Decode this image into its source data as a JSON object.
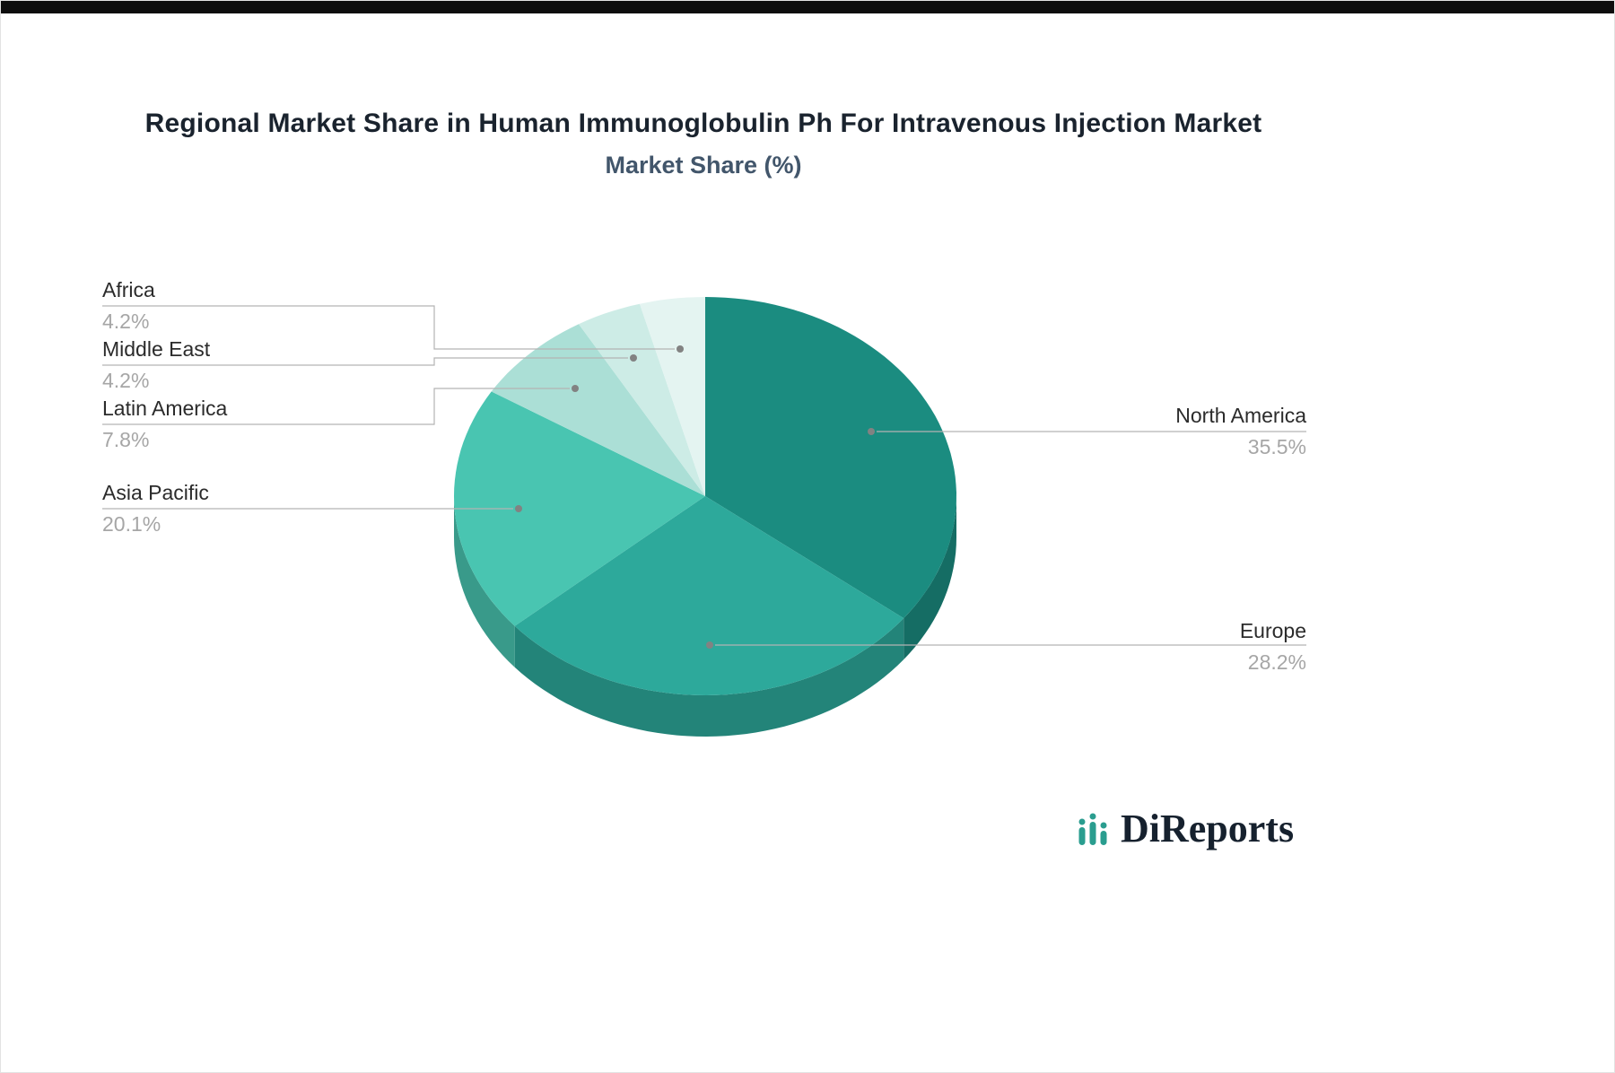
{
  "page": {
    "title": "Regional Market Share in Human Immunoglobulin Ph For Intravenous Injection Market",
    "subtitle": "Market Share (%)"
  },
  "brand": {
    "name": "DiReports"
  },
  "chart_data": {
    "type": "pie",
    "title": "Regional Market Share in Human Immunoglobulin Ph For Intravenous Injection Market",
    "subtitle": "Market Share (%)",
    "unit": "%",
    "style": "3d-pie",
    "start_angle_deg": 0,
    "direction": "clockwise",
    "legend_position": "callout-labels",
    "series": [
      {
        "label": "North America",
        "value": 35.5,
        "display": "35.5%",
        "color": "#1b8c80"
      },
      {
        "label": "Europe",
        "value": 28.2,
        "display": "28.2%",
        "color": "#2da99b"
      },
      {
        "label": "Asia Pacific",
        "value": 20.1,
        "display": "20.1%",
        "color": "#49c5b1"
      },
      {
        "label": "Latin America",
        "value": 7.8,
        "display": "7.8%",
        "color": "#abdfd6"
      },
      {
        "label": "Middle East",
        "value": 4.2,
        "display": "4.2%",
        "color": "#cdece6"
      },
      {
        "label": "Africa",
        "value": 4.2,
        "display": "4.2%",
        "color": "#e4f4f1"
      }
    ]
  }
}
